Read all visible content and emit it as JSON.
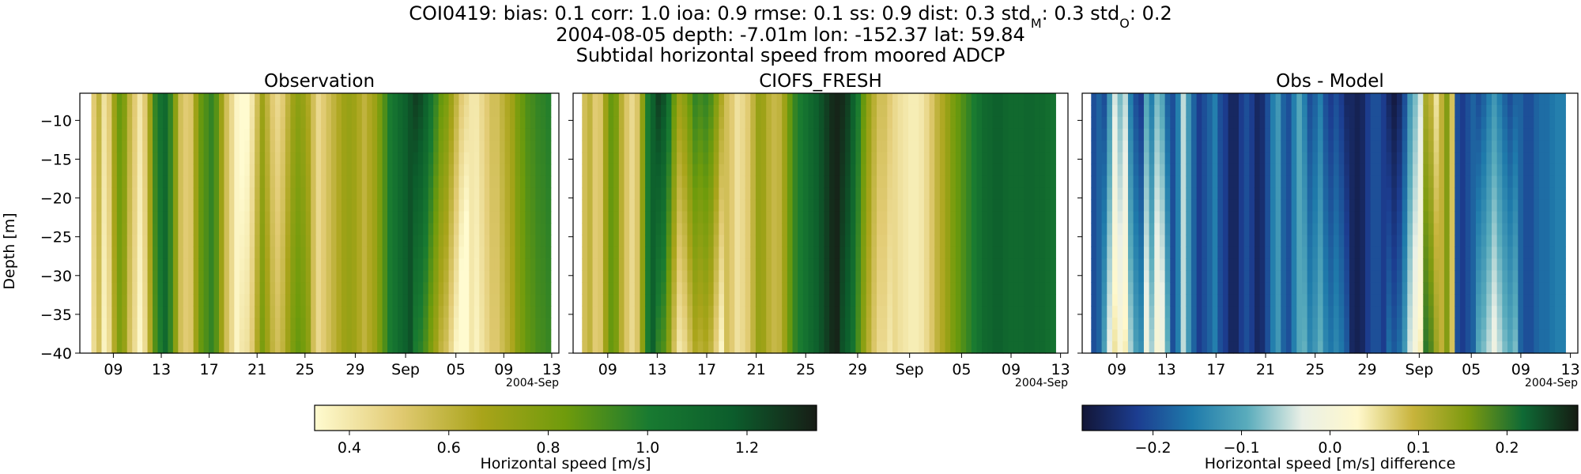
{
  "title": {
    "station": "COI0419",
    "stats_text": "COI0419: bias: 0.1  corr: 1.0  ioa: 0.9  rmse: 0.1  ss: 0.9  dist: 0.3  std",
    "stdM_sub": "M",
    "stdM_val": ": 0.3  std",
    "stdO_sub": "O",
    "stdO_val": ": 0.2",
    "line2": "2004-08-05 depth: -7.01m lon: -152.37 lat: 59.84",
    "line3": "Subtidal horizontal speed from moored ADCP"
  },
  "colors": {
    "speed_cmap": [
      "#fffbd0",
      "#e2cb74",
      "#a9a41a",
      "#6f9b0c",
      "#187a31",
      "#0c5d2c",
      "#171d16"
    ],
    "diff_cmap": [
      "#121536",
      "#1c3d90",
      "#1f7bab",
      "#5aacbc",
      "#eaf0e6",
      "#fff8cc",
      "#c8b43c",
      "#7d9a10",
      "#0f6a35",
      "#151b12"
    ]
  },
  "chart_data": [
    {
      "type": "heatmap",
      "title": "Observation",
      "ylabel": "Depth [m]",
      "yticks": [
        "−10",
        "−15",
        "−20",
        "−25",
        "−30",
        "−35",
        "−40"
      ],
      "xticks": [
        "09",
        "13",
        "17",
        "21",
        "25",
        "29",
        "Sep",
        "05",
        "09",
        "13"
      ],
      "x_offset_label": "2004-Sep",
      "ylim": [
        -40,
        -6.5
      ],
      "x_values": [
        0.5,
        0.6,
        0.42,
        0.5,
        0.7,
        0.85,
        0.78,
        0.6,
        0.5,
        0.4,
        0.5,
        0.7,
        0.95,
        1.05,
        1.1,
        0.95,
        0.75,
        0.55,
        0.5,
        0.52,
        0.7,
        0.85,
        0.9,
        0.95,
        0.88,
        0.7,
        0.55,
        0.45,
        0.35,
        0.3,
        0.32,
        0.4,
        0.55,
        0.7,
        0.6,
        0.5,
        0.45,
        0.5,
        0.6,
        0.7,
        0.75,
        0.72,
        0.65,
        0.55,
        0.45,
        0.5,
        0.55,
        0.6,
        0.65,
        0.7,
        0.72,
        0.7,
        0.65,
        0.6,
        0.65,
        0.7,
        0.8,
        0.9,
        1.0,
        1.05,
        1.1,
        1.15,
        1.2,
        1.25,
        1.22,
        1.15,
        1.05,
        0.95,
        0.85,
        0.8,
        0.7,
        0.6,
        0.5,
        0.45,
        0.4,
        0.4,
        0.45,
        0.5,
        0.55,
        0.55,
        0.6,
        0.65,
        0.7,
        0.8,
        0.85,
        0.9,
        0.92,
        0.95,
        0.96,
        0.98
      ],
      "depth_trend": [
        {
          "from": 0,
          "to": 0.15,
          "near_bottom_change": -0.06
        },
        {
          "from": 0.32,
          "to": 0.48,
          "near_bottom_change": 0.1
        },
        {
          "from": 0.7,
          "to": 0.83,
          "near_bottom_change": -0.25
        },
        {
          "from": 0.84,
          "to": 1.0,
          "near_bottom_change": -0.04
        }
      ]
    },
    {
      "type": "heatmap",
      "title": "CIOFS_FRESH",
      "yticks": [
        "−10",
        "−15",
        "−20",
        "−25",
        "−30",
        "−35",
        "−40"
      ],
      "xticks": [
        "09",
        "13",
        "17",
        "21",
        "25",
        "29",
        "Sep",
        "05",
        "09",
        "13"
      ],
      "x_offset_label": "2004-Sep",
      "ylim": [
        -40,
        -6.5
      ],
      "x_values": [
        0.55,
        0.6,
        0.5,
        0.52,
        0.7,
        0.85,
        0.8,
        0.62,
        0.52,
        0.45,
        0.52,
        0.75,
        1.0,
        1.15,
        1.25,
        1.2,
        1.05,
        0.85,
        0.7,
        0.75,
        0.85,
        0.95,
        0.92,
        0.95,
        0.9,
        0.78,
        0.65,
        0.55,
        0.5,
        0.42,
        0.45,
        0.5,
        0.6,
        0.72,
        0.7,
        0.62,
        0.58,
        0.6,
        0.7,
        0.85,
        0.95,
        1.0,
        1.05,
        1.1,
        1.15,
        1.2,
        1.25,
        1.3,
        1.32,
        1.3,
        1.25,
        1.15,
        1.0,
        0.85,
        0.72,
        0.62,
        0.55,
        0.55,
        0.5,
        0.45,
        0.42,
        0.4,
        0.38,
        0.38,
        0.4,
        0.45,
        0.52,
        0.6,
        0.65,
        0.72,
        0.8,
        0.85,
        0.9,
        0.95,
        1.0,
        1.05,
        1.1,
        1.12,
        1.15,
        1.15,
        1.12,
        1.1,
        1.1,
        1.1,
        1.12,
        1.12,
        1.1,
        1.1,
        1.08,
        1.05
      ],
      "depth_trend": [
        {
          "from": 0.15,
          "to": 0.3,
          "near_bottom_change": -0.3
        },
        {
          "from": 0.54,
          "to": 0.66,
          "near_bottom_change": -0.1
        }
      ]
    },
    {
      "type": "heatmap",
      "title": "Obs - Model",
      "yticks": [
        "−10",
        "−15",
        "−20",
        "−25",
        "−30",
        "−35",
        "−40"
      ],
      "xticks": [
        "09",
        "13",
        "17",
        "21",
        "25",
        "29",
        "Sep",
        "05",
        "09",
        "13"
      ],
      "x_offset_label": "2004-Sep",
      "ylim": [
        -40,
        -6.5
      ],
      "x_values": [
        -0.2,
        -0.18,
        -0.2,
        -0.12,
        -0.04,
        -0.08,
        -0.05,
        -0.15,
        -0.2,
        -0.22,
        -0.1,
        -0.15,
        -0.08,
        -0.1,
        -0.18,
        -0.2,
        -0.15,
        -0.05,
        -0.12,
        -0.18,
        -0.22,
        -0.2,
        -0.18,
        -0.15,
        -0.2,
        -0.22,
        -0.25,
        -0.25,
        -0.22,
        -0.2,
        -0.22,
        -0.25,
        -0.24,
        -0.2,
        -0.15,
        -0.12,
        -0.18,
        -0.2,
        -0.15,
        -0.1,
        -0.15,
        -0.2,
        -0.18,
        -0.15,
        -0.2,
        -0.22,
        -0.2,
        -0.22,
        -0.25,
        -0.25,
        -0.26,
        -0.25,
        -0.22,
        -0.2,
        -0.2,
        -0.22,
        -0.25,
        -0.27,
        -0.25,
        -0.2,
        -0.12,
        -0.08,
        -0.04,
        0.12,
        0.1,
        0.05,
        0.1,
        0.15,
        0.08,
        -0.2,
        -0.22,
        -0.2,
        -0.18,
        -0.2,
        -0.18,
        -0.15,
        -0.12,
        -0.15,
        -0.18,
        -0.2,
        -0.18,
        -0.18,
        -0.2,
        -0.2,
        -0.18,
        -0.17,
        -0.17,
        -0.16,
        -0.15,
        -0.15
      ],
      "depth_trend": [
        {
          "from": 0.02,
          "to": 0.16,
          "near_bottom_change": 0.09
        },
        {
          "from": 0.44,
          "to": 0.54,
          "near_bottom_change": 0.06
        },
        {
          "from": 0.62,
          "to": 0.74,
          "near_bottom_change": 0.08
        },
        {
          "from": 0.82,
          "to": 0.9,
          "near_bottom_change": 0.1
        }
      ]
    },
    {
      "type": "colorbar",
      "label": "Horizontal speed [m/s]",
      "range": [
        0.33,
        1.34
      ],
      "ticks": [
        "0.4",
        "0.6",
        "0.8",
        "1.0",
        "1.2"
      ],
      "tick_values": [
        0.4,
        0.6,
        0.8,
        1.0,
        1.2
      ]
    },
    {
      "type": "colorbar",
      "label": "Horizontal speed [m/s] difference",
      "range": [
        -0.28,
        0.28
      ],
      "ticks": [
        "−0.2",
        "−0.1",
        "0.0",
        "0.1",
        "0.2"
      ],
      "tick_values": [
        -0.2,
        -0.1,
        0.0,
        0.1,
        0.2
      ]
    }
  ]
}
